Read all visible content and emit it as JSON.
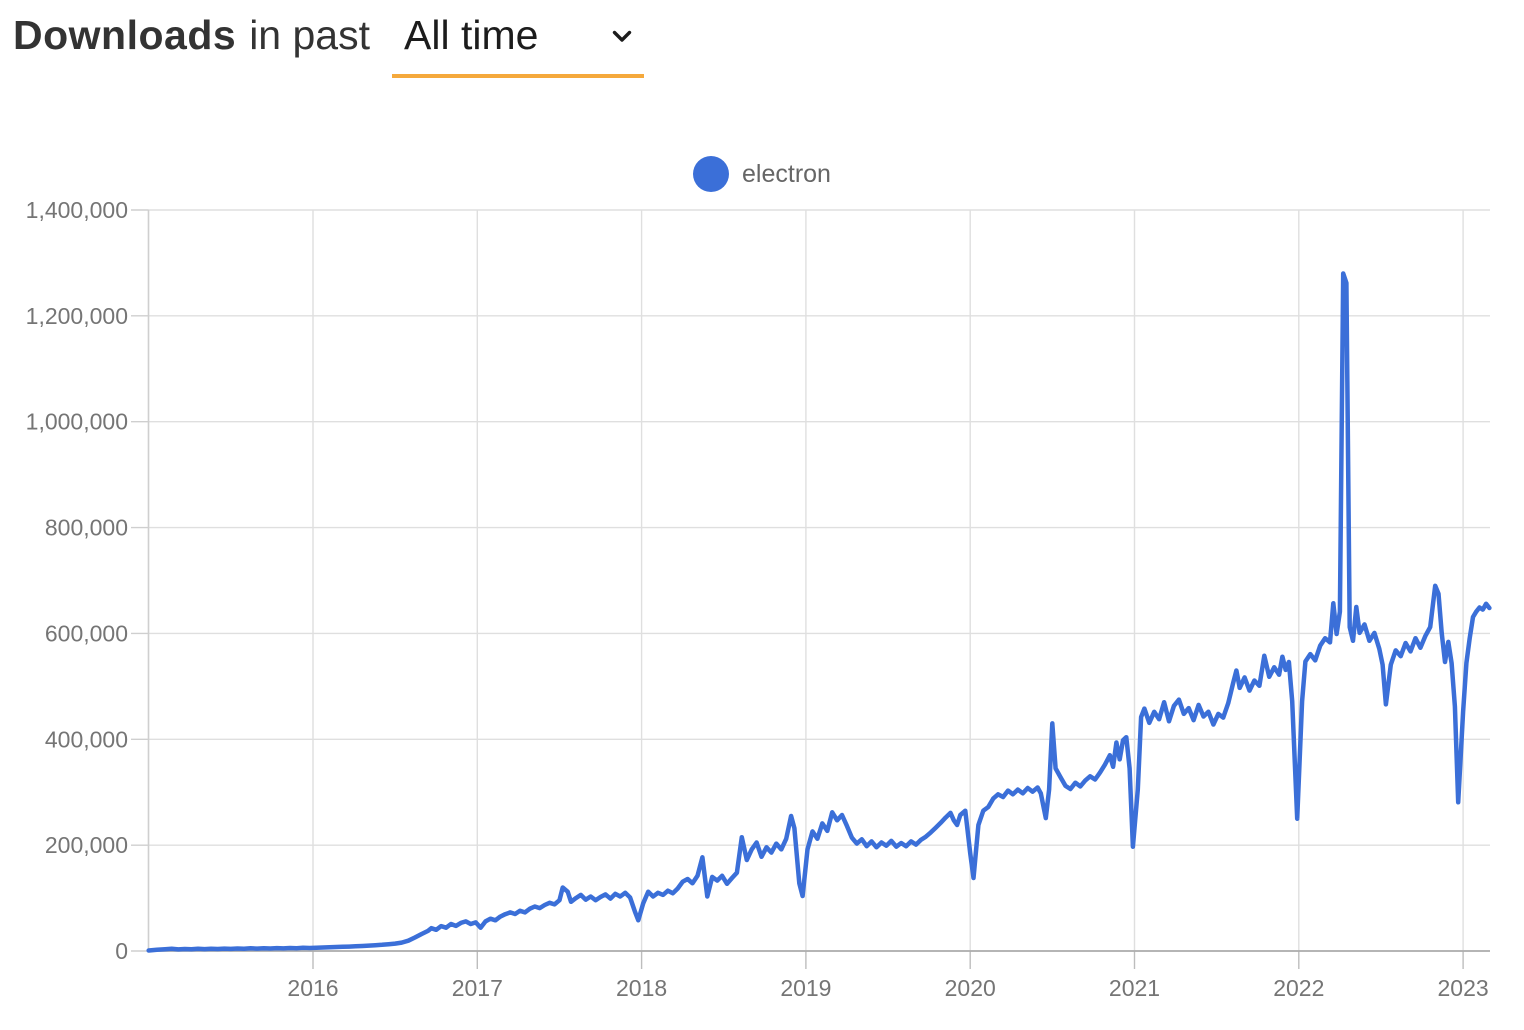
{
  "header": {
    "title_bold": "Downloads",
    "title_rest": "in past",
    "period_dropdown": {
      "value": "All time",
      "icon": "chevron-down",
      "accent_color": "#F5A93C"
    }
  },
  "legend": {
    "items": [
      {
        "label": "electron",
        "color": "#3B6FD8"
      }
    ]
  },
  "chart_data": {
    "type": "line",
    "title": "Downloads in past All time",
    "xlabel": "",
    "ylabel": "",
    "x_unit": "year (weekly npm download counts)",
    "xlim": [
      2015.0,
      2023.17
    ],
    "ylim": [
      0,
      1400000
    ],
    "grid": true,
    "legend_position": "top-center",
    "x_ticks": {
      "values": [
        2016,
        2017,
        2018,
        2019,
        2020,
        2021,
        2022,
        2023
      ],
      "labels": [
        "2016",
        "2017",
        "2018",
        "2019",
        "2020",
        "2021",
        "2022",
        "2023"
      ]
    },
    "y_ticks": {
      "values": [
        0,
        200000,
        400000,
        600000,
        800000,
        1000000,
        1200000,
        1400000
      ],
      "labels": [
        "0",
        "200,000",
        "400,000",
        "600,000",
        "800,000",
        "1,000,000",
        "1,200,000",
        "1,400,000"
      ]
    },
    "series": [
      {
        "name": "electron",
        "color": "#3B6FD8",
        "line_width": 4.5,
        "points": [
          [
            2015.0,
            1000
          ],
          [
            2015.05,
            2200
          ],
          [
            2015.1,
            3200
          ],
          [
            2015.14,
            4200
          ],
          [
            2015.18,
            3100
          ],
          [
            2015.22,
            3800
          ],
          [
            2015.26,
            3300
          ],
          [
            2015.3,
            4100
          ],
          [
            2015.34,
            3600
          ],
          [
            2015.38,
            4300
          ],
          [
            2015.42,
            3800
          ],
          [
            2015.46,
            4500
          ],
          [
            2015.5,
            4000
          ],
          [
            2015.54,
            4800
          ],
          [
            2015.58,
            4300
          ],
          [
            2015.62,
            5100
          ],
          [
            2015.66,
            4600
          ],
          [
            2015.7,
            5300
          ],
          [
            2015.74,
            4800
          ],
          [
            2015.78,
            5500
          ],
          [
            2015.82,
            5000
          ],
          [
            2015.86,
            5700
          ],
          [
            2015.9,
            5300
          ],
          [
            2015.94,
            6000
          ],
          [
            2015.98,
            5600
          ],
          [
            2016.02,
            6200
          ],
          [
            2016.06,
            6700
          ],
          [
            2016.1,
            7100
          ],
          [
            2016.14,
            7600
          ],
          [
            2016.18,
            8000
          ],
          [
            2016.22,
            8400
          ],
          [
            2016.26,
            8900
          ],
          [
            2016.3,
            9400
          ],
          [
            2016.34,
            10200
          ],
          [
            2016.38,
            11000
          ],
          [
            2016.42,
            11800
          ],
          [
            2016.46,
            12800
          ],
          [
            2016.5,
            14000
          ],
          [
            2016.54,
            15800
          ],
          [
            2016.58,
            19500
          ],
          [
            2016.62,
            25500
          ],
          [
            2016.66,
            32000
          ],
          [
            2016.7,
            38000
          ],
          [
            2016.72,
            43000
          ],
          [
            2016.75,
            40000
          ],
          [
            2016.78,
            47000
          ],
          [
            2016.81,
            44000
          ],
          [
            2016.84,
            51000
          ],
          [
            2016.87,
            47500
          ],
          [
            2016.9,
            53000
          ],
          [
            2016.93,
            56000
          ],
          [
            2016.96,
            51000
          ],
          [
            2016.99,
            54000
          ],
          [
            2017.02,
            44000
          ],
          [
            2017.05,
            56000
          ],
          [
            2017.08,
            61000
          ],
          [
            2017.11,
            58000
          ],
          [
            2017.14,
            65000
          ],
          [
            2017.17,
            69500
          ],
          [
            2017.2,
            73000
          ],
          [
            2017.23,
            70000
          ],
          [
            2017.26,
            76000
          ],
          [
            2017.29,
            73000
          ],
          [
            2017.32,
            80000
          ],
          [
            2017.35,
            84000
          ],
          [
            2017.38,
            81000
          ],
          [
            2017.41,
            87000
          ],
          [
            2017.44,
            91000
          ],
          [
            2017.47,
            88000
          ],
          [
            2017.5,
            96000
          ],
          [
            2017.52,
            120000
          ],
          [
            2017.55,
            112000
          ],
          [
            2017.57,
            93000
          ],
          [
            2017.6,
            100000
          ],
          [
            2017.63,
            106000
          ],
          [
            2017.66,
            97000
          ],
          [
            2017.69,
            103000
          ],
          [
            2017.72,
            96000
          ],
          [
            2017.75,
            102000
          ],
          [
            2017.78,
            107000
          ],
          [
            2017.81,
            99000
          ],
          [
            2017.84,
            108000
          ],
          [
            2017.87,
            103000
          ],
          [
            2017.9,
            110000
          ],
          [
            2017.93,
            101000
          ],
          [
            2017.96,
            74000
          ],
          [
            2017.98,
            58000
          ],
          [
            2018.01,
            90000
          ],
          [
            2018.04,
            112000
          ],
          [
            2018.07,
            103000
          ],
          [
            2018.1,
            110000
          ],
          [
            2018.13,
            106000
          ],
          [
            2018.16,
            114000
          ],
          [
            2018.19,
            109000
          ],
          [
            2018.22,
            118000
          ],
          [
            2018.25,
            131000
          ],
          [
            2018.28,
            136000
          ],
          [
            2018.31,
            128000
          ],
          [
            2018.34,
            142000
          ],
          [
            2018.37,
            177000
          ],
          [
            2018.4,
            103000
          ],
          [
            2018.43,
            140000
          ],
          [
            2018.46,
            133000
          ],
          [
            2018.49,
            142000
          ],
          [
            2018.52,
            127000
          ],
          [
            2018.55,
            138000
          ],
          [
            2018.58,
            148000
          ],
          [
            2018.61,
            215000
          ],
          [
            2018.64,
            172000
          ],
          [
            2018.67,
            192000
          ],
          [
            2018.7,
            205000
          ],
          [
            2018.73,
            178000
          ],
          [
            2018.76,
            196000
          ],
          [
            2018.79,
            186000
          ],
          [
            2018.82,
            203000
          ],
          [
            2018.85,
            192000
          ],
          [
            2018.88,
            212000
          ],
          [
            2018.91,
            255000
          ],
          [
            2018.93,
            232000
          ],
          [
            2018.96,
            128000
          ],
          [
            2018.98,
            104000
          ],
          [
            2019.01,
            192000
          ],
          [
            2019.04,
            226000
          ],
          [
            2019.07,
            212000
          ],
          [
            2019.1,
            241000
          ],
          [
            2019.13,
            227000
          ],
          [
            2019.16,
            262000
          ],
          [
            2019.19,
            247000
          ],
          [
            2019.22,
            257000
          ],
          [
            2019.25,
            236000
          ],
          [
            2019.28,
            214000
          ],
          [
            2019.31,
            203000
          ],
          [
            2019.34,
            211000
          ],
          [
            2019.37,
            198000
          ],
          [
            2019.4,
            207000
          ],
          [
            2019.43,
            196000
          ],
          [
            2019.46,
            205000
          ],
          [
            2019.49,
            199000
          ],
          [
            2019.52,
            208000
          ],
          [
            2019.55,
            197000
          ],
          [
            2019.58,
            204000
          ],
          [
            2019.61,
            198000
          ],
          [
            2019.64,
            207000
          ],
          [
            2019.67,
            201000
          ],
          [
            2019.7,
            210000
          ],
          [
            2019.73,
            216000
          ],
          [
            2019.76,
            224000
          ],
          [
            2019.79,
            233000
          ],
          [
            2019.82,
            242000
          ],
          [
            2019.85,
            252000
          ],
          [
            2019.88,
            261000
          ],
          [
            2019.9,
            247000
          ],
          [
            2019.92,
            238000
          ],
          [
            2019.94,
            257000
          ],
          [
            2019.97,
            265000
          ],
          [
            2020.0,
            185000
          ],
          [
            2020.02,
            138000
          ],
          [
            2020.05,
            238000
          ],
          [
            2020.08,
            265000
          ],
          [
            2020.11,
            272000
          ],
          [
            2020.14,
            288000
          ],
          [
            2020.17,
            296000
          ],
          [
            2020.2,
            291000
          ],
          [
            2020.23,
            303000
          ],
          [
            2020.26,
            296000
          ],
          [
            2020.29,
            305000
          ],
          [
            2020.32,
            298000
          ],
          [
            2020.35,
            308000
          ],
          [
            2020.38,
            301000
          ],
          [
            2020.41,
            309000
          ],
          [
            2020.43,
            298000
          ],
          [
            2020.46,
            251000
          ],
          [
            2020.48,
            305000
          ],
          [
            2020.5,
            430000
          ],
          [
            2020.52,
            345000
          ],
          [
            2020.55,
            328000
          ],
          [
            2020.58,
            312000
          ],
          [
            2020.61,
            306000
          ],
          [
            2020.64,
            318000
          ],
          [
            2020.67,
            311000
          ],
          [
            2020.7,
            322000
          ],
          [
            2020.73,
            330000
          ],
          [
            2020.76,
            324000
          ],
          [
            2020.79,
            337000
          ],
          [
            2020.82,
            352000
          ],
          [
            2020.85,
            370000
          ],
          [
            2020.87,
            348000
          ],
          [
            2020.89,
            394000
          ],
          [
            2020.91,
            362000
          ],
          [
            2020.93,
            398000
          ],
          [
            2020.95,
            404000
          ],
          [
            2020.97,
            345000
          ],
          [
            2020.99,
            197000
          ],
          [
            2021.02,
            305000
          ],
          [
            2021.04,
            442000
          ],
          [
            2021.06,
            458000
          ],
          [
            2021.09,
            431000
          ],
          [
            2021.12,
            452000
          ],
          [
            2021.15,
            438000
          ],
          [
            2021.18,
            470000
          ],
          [
            2021.21,
            434000
          ],
          [
            2021.24,
            463000
          ],
          [
            2021.27,
            475000
          ],
          [
            2021.3,
            448000
          ],
          [
            2021.33,
            459000
          ],
          [
            2021.36,
            436000
          ],
          [
            2021.39,
            465000
          ],
          [
            2021.42,
            443000
          ],
          [
            2021.45,
            452000
          ],
          [
            2021.48,
            428000
          ],
          [
            2021.51,
            448000
          ],
          [
            2021.54,
            441000
          ],
          [
            2021.57,
            468000
          ],
          [
            2021.6,
            506000
          ],
          [
            2021.62,
            530000
          ],
          [
            2021.64,
            497000
          ],
          [
            2021.67,
            517000
          ],
          [
            2021.7,
            492000
          ],
          [
            2021.73,
            511000
          ],
          [
            2021.76,
            501000
          ],
          [
            2021.79,
            558000
          ],
          [
            2021.82,
            518000
          ],
          [
            2021.85,
            536000
          ],
          [
            2021.88,
            522000
          ],
          [
            2021.9,
            556000
          ],
          [
            2021.92,
            531000
          ],
          [
            2021.94,
            546000
          ],
          [
            2021.96,
            472000
          ],
          [
            2021.99,
            250000
          ],
          [
            2022.02,
            472000
          ],
          [
            2022.04,
            547000
          ],
          [
            2022.07,
            561000
          ],
          [
            2022.1,
            549000
          ],
          [
            2022.13,
            577000
          ],
          [
            2022.16,
            591000
          ],
          [
            2022.19,
            583000
          ],
          [
            2022.21,
            657000
          ],
          [
            2022.23,
            599000
          ],
          [
            2022.25,
            641000
          ],
          [
            2022.27,
            1280000
          ],
          [
            2022.29,
            1262000
          ],
          [
            2022.31,
            612000
          ],
          [
            2022.33,
            586000
          ],
          [
            2022.35,
            650000
          ],
          [
            2022.37,
            601000
          ],
          [
            2022.4,
            617000
          ],
          [
            2022.43,
            586000
          ],
          [
            2022.46,
            601000
          ],
          [
            2022.49,
            571000
          ],
          [
            2022.51,
            541000
          ],
          [
            2022.53,
            466000
          ],
          [
            2022.56,
            541000
          ],
          [
            2022.59,
            568000
          ],
          [
            2022.62,
            557000
          ],
          [
            2022.65,
            582000
          ],
          [
            2022.68,
            566000
          ],
          [
            2022.71,
            591000
          ],
          [
            2022.74,
            573000
          ],
          [
            2022.77,
            595000
          ],
          [
            2022.8,
            612000
          ],
          [
            2022.83,
            690000
          ],
          [
            2022.85,
            675000
          ],
          [
            2022.87,
            601000
          ],
          [
            2022.89,
            546000
          ],
          [
            2022.91,
            584000
          ],
          [
            2022.93,
            544000
          ],
          [
            2022.95,
            462000
          ],
          [
            2022.97,
            281000
          ],
          [
            2023.0,
            452000
          ],
          [
            2023.02,
            544000
          ],
          [
            2023.04,
            591000
          ],
          [
            2023.06,
            631000
          ],
          [
            2023.08,
            641000
          ],
          [
            2023.1,
            649000
          ],
          [
            2023.12,
            645000
          ],
          [
            2023.14,
            656000
          ],
          [
            2023.16,
            648000
          ]
        ]
      }
    ]
  },
  "colors": {
    "series_blue": "#3B6FD8",
    "accent_orange": "#F5A93C",
    "gridline": "#DFDFDF",
    "axis_line": "#ADADAD",
    "tick_label": "#757575",
    "title_text": "#333333",
    "legend_text": "#666666"
  }
}
